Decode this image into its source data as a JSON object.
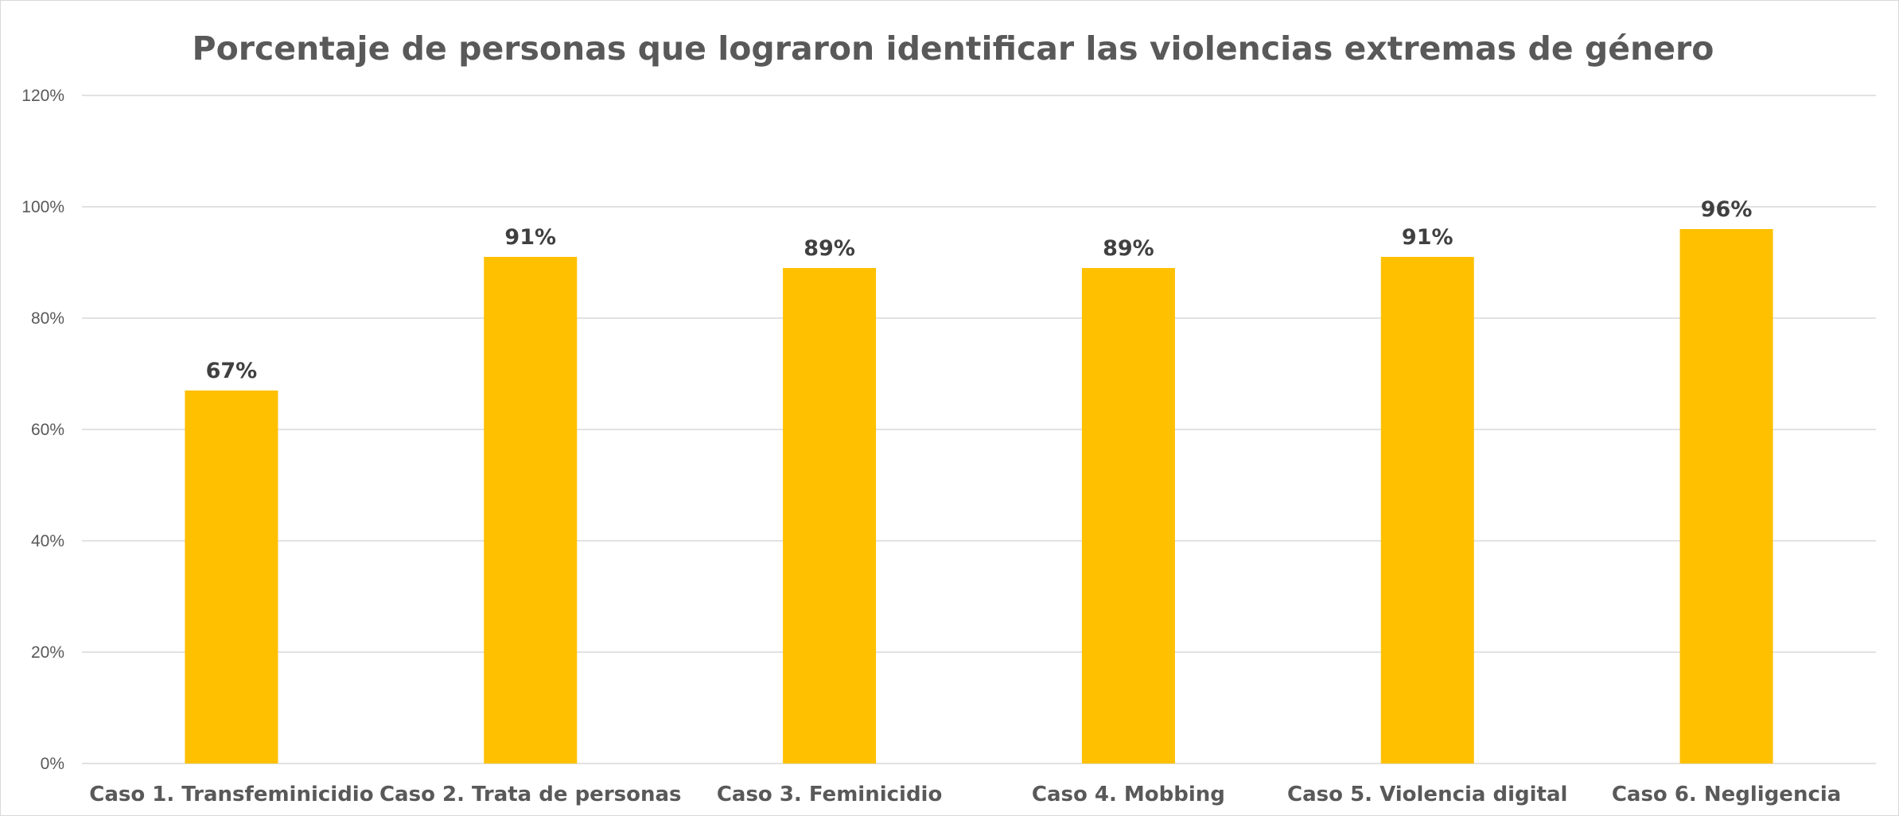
{
  "chart_data": {
    "type": "bar",
    "title": "Porcentaje de personas que lograron identificar las violencias extremas de género",
    "xlabel": "",
    "ylabel": "",
    "categories": [
      "Caso 1. Transfeminicidio",
      "Caso 2. Trata de personas",
      "Caso 3. Feminicidio",
      "Caso 4. Mobbing",
      "Caso 5. Violencia digital",
      "Caso 6. Negligencia"
    ],
    "values": [
      67,
      91,
      89,
      89,
      91,
      96
    ],
    "data_labels": [
      "67%",
      "91%",
      "89%",
      "89%",
      "91%",
      "96%"
    ],
    "ylim": [
      0,
      120
    ],
    "y_ticks": [
      0,
      20,
      40,
      60,
      80,
      100,
      120
    ],
    "y_tick_labels": [
      "0%",
      "20%",
      "40%",
      "60%",
      "80%",
      "100%",
      "120%"
    ],
    "grid": true,
    "legend": "none",
    "bar_color": "#FFC000"
  }
}
